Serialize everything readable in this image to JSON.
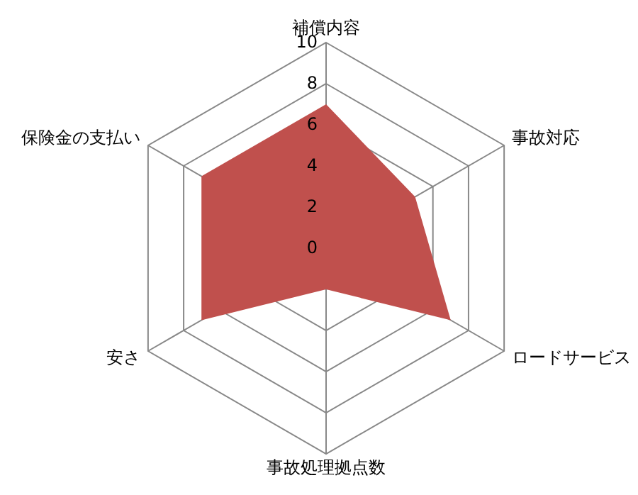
{
  "chart_data": {
    "type": "radar",
    "categories": [
      "補償内容",
      "事故対応",
      "ロードサービス",
      "事故処理拠点数",
      "安さ",
      "保険金の支払い"
    ],
    "series": [
      {
        "color": "#c0504d",
        "values": [
          7,
          5,
          7,
          2,
          7,
          7
        ]
      }
    ],
    "ylim": [
      0,
      10
    ],
    "yticks": [
      0,
      2,
      4,
      6,
      8,
      10
    ],
    "grid": true
  }
}
